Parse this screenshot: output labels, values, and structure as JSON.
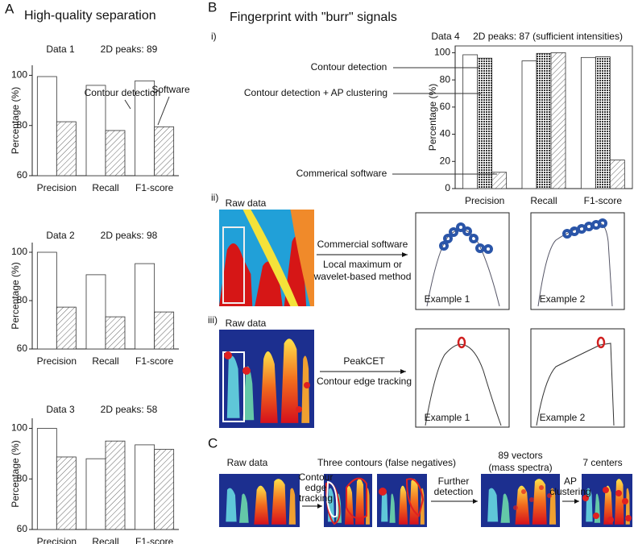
{
  "panels": {
    "a": {
      "label": "A",
      "title": "High-quality separation"
    },
    "b": {
      "label": "B",
      "title": "Fingerprint with \"burr\" signals",
      "sub_i": "i)",
      "sub_ii": "ii)",
      "sub_iii": "iii)",
      "ii": {
        "raw": "Raw data",
        "method": "Commercial software",
        "note_1": "Local maximum or",
        "note_2": "wavelet-based method",
        "example_1": "Example 1",
        "example_2": "Example 2"
      },
      "iii": {
        "raw": "Raw data",
        "method": "PeakCET",
        "note": "Contour edge tracking",
        "example_1": "Example 1",
        "example_2": "Example 2"
      }
    },
    "c": {
      "label": "C",
      "raw": "Raw data",
      "contours": "Three contours (false negatives)",
      "step_1": [
        "Contour",
        "edge",
        "tracking"
      ],
      "vectors": [
        "89 vectors",
        "(mass spectra)"
      ],
      "step_2": [
        "Further",
        "detection"
      ],
      "centers": "7 centers",
      "step_3": [
        "AP",
        "clustering"
      ]
    }
  },
  "chart_data": [
    {
      "type": "bar",
      "title": "Data 1",
      "subtitle": "2D peaks: 89",
      "ylabel": "Percentage (%)",
      "categories": [
        "Precision",
        "Recall",
        "F1-score"
      ],
      "ylim": [
        60,
        104
      ],
      "yticks": [
        60,
        80,
        100
      ],
      "series": [
        {
          "name": "Contour detection",
          "color": "#ffffff",
          "pattern": "none",
          "values": [
            99.5,
            96,
            97.8
          ]
        },
        {
          "name": "Software",
          "color": "#ffffff",
          "pattern": "hatch",
          "values": [
            81.5,
            78,
            79.5
          ]
        }
      ]
    },
    {
      "type": "bar",
      "title": "Data 2",
      "subtitle": "2D peaks: 98",
      "ylabel": "Percentage (%)",
      "categories": [
        "Precision",
        "Recall",
        "F1-score"
      ],
      "ylim": [
        60,
        104
      ],
      "yticks": [
        60,
        80,
        100
      ],
      "series": [
        {
          "color": "#ffffff",
          "pattern": "none",
          "values": [
            100,
            90.7,
            95.3
          ]
        },
        {
          "color": "#ffffff",
          "pattern": "hatch",
          "values": [
            77.3,
            73.3,
            75.3
          ]
        }
      ]
    },
    {
      "type": "bar",
      "title": "Data 3",
      "subtitle": "2D peaks: 58",
      "ylabel": "Percentage (%)",
      "categories": [
        "Precision",
        "Recall",
        "F1-score"
      ],
      "ylim": [
        60,
        104
      ],
      "yticks": [
        60,
        80,
        100
      ],
      "series": [
        {
          "color": "#ffffff",
          "pattern": "none",
          "values": [
            100,
            88,
            93.5
          ]
        },
        {
          "color": "#ffffff",
          "pattern": "hatch",
          "values": [
            88.7,
            95,
            91.7
          ]
        }
      ]
    },
    {
      "type": "bar",
      "title": "Data 4",
      "subtitle": "2D peaks: 87 (sufficient intensities)",
      "ylabel": "Percentage (%)",
      "categories": [
        "Precision",
        "Recall",
        "F1-score"
      ],
      "ylim": [
        0,
        105
      ],
      "yticks": [
        0,
        20,
        40,
        60,
        80,
        100
      ],
      "series": [
        {
          "name": "Contour detection",
          "color": "#ffffff",
          "pattern": "none",
          "values": [
            98.5,
            94,
            96.5
          ]
        },
        {
          "name": "Contour detection + AP clustering",
          "color": "#333333",
          "pattern": "grid",
          "values": [
            96,
            99.5,
            97
          ]
        },
        {
          "name": "Commerical software",
          "color": "#ffffff",
          "pattern": "hatch",
          "values": [
            12,
            100,
            21
          ]
        }
      ]
    }
  ]
}
